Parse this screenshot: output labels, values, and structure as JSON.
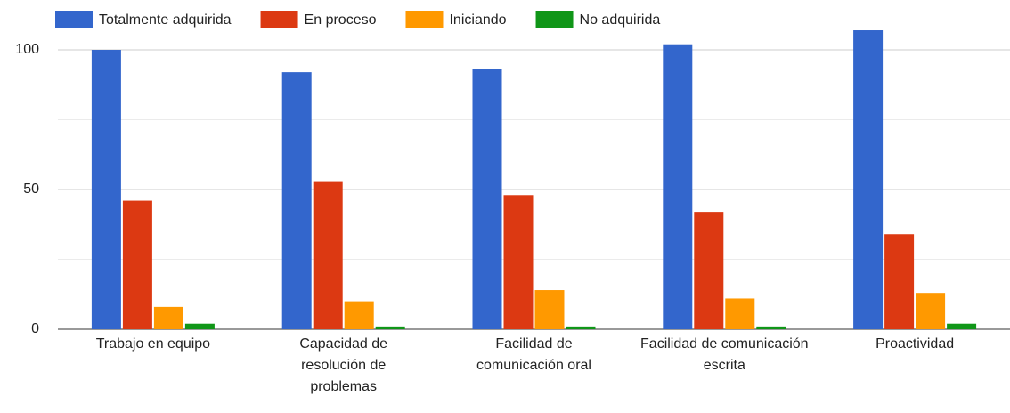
{
  "chart_data": {
    "type": "bar",
    "categories": [
      "Trabajo en equipo",
      "Capacidad de resolución de problemas",
      "Facilidad de comunicación oral",
      "Facilidad de comunicación escrita",
      "Proactividad"
    ],
    "series": [
      {
        "name": "Totalmente adquirida",
        "color": "#3366cc",
        "values": [
          100,
          92,
          93,
          102,
          107
        ]
      },
      {
        "name": "En proceso",
        "color": "#dc3912",
        "values": [
          46,
          53,
          48,
          42,
          34
        ]
      },
      {
        "name": "Iniciando",
        "color": "#ff9900",
        "values": [
          8,
          10,
          14,
          11,
          13
        ]
      },
      {
        "name": "No adquirida",
        "color": "#109618",
        "values": [
          2,
          1,
          1,
          1,
          2
        ]
      }
    ],
    "ylim": [
      0,
      112
    ],
    "yticks": [
      0,
      50,
      100
    ],
    "minor_yticks": [
      25,
      75
    ],
    "grid": true,
    "legend": "top"
  }
}
